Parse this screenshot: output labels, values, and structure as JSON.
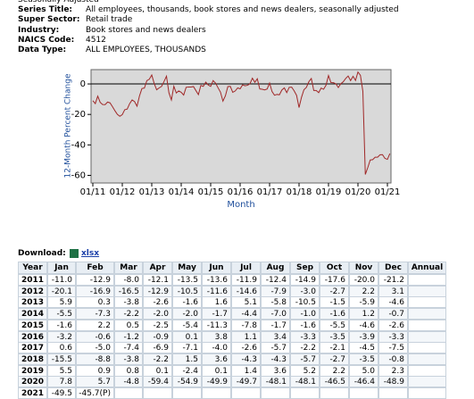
{
  "header": {
    "top_note": "Seasonally Adjusted"
  },
  "series_info": [
    {
      "label": "Series Title:",
      "value": "All employees, thousands, book stores and news dealers, seasonally adjusted"
    },
    {
      "label": "Super Sector:",
      "value": "Retail trade"
    },
    {
      "label": "Industry:",
      "value": "Book stores and news dealers"
    },
    {
      "label": "NAICS Code:",
      "value": "4512"
    },
    {
      "label": "Data Type:",
      "value": "ALL EMPLOYEES, THOUSANDS"
    }
  ],
  "chart_data": {
    "type": "line",
    "y_label": "12-Month Percent Change",
    "x_label": "Month",
    "ylim": [
      -65,
      9.4
    ],
    "yticks": [
      -60,
      -40,
      -20,
      0
    ],
    "xticks": [
      {
        "value": 0,
        "label": "01/11"
      },
      {
        "value": 12,
        "label": "01/12"
      },
      {
        "value": 24,
        "label": "01/13"
      },
      {
        "value": 36,
        "label": "01/14"
      },
      {
        "value": 48,
        "label": "01/15"
      },
      {
        "value": 60,
        "label": "01/16"
      },
      {
        "value": 72,
        "label": "01/17"
      },
      {
        "value": 84,
        "label": "01/18"
      },
      {
        "value": 96,
        "label": "01/19"
      },
      {
        "value": 108,
        "label": "01/20"
      },
      {
        "value": 120,
        "label": "01/21"
      }
    ],
    "series": [
      {
        "color": "#a02828",
        "values": [
          -11.0,
          -12.9,
          -8.0,
          -12.1,
          -13.5,
          -13.6,
          -11.9,
          -12.4,
          -14.9,
          -17.6,
          -20.0,
          -21.2,
          -20.1,
          -16.9,
          -16.5,
          -12.9,
          -10.5,
          -11.6,
          -14.6,
          -7.9,
          -3.0,
          -2.7,
          2.2,
          3.1,
          5.9,
          0.3,
          -3.8,
          -2.6,
          -1.6,
          1.6,
          5.1,
          -5.8,
          -10.5,
          -1.5,
          -5.9,
          -4.6,
          -5.5,
          -7.3,
          -2.2,
          -2.0,
          -2.0,
          -1.7,
          -4.4,
          -7.0,
          -1.0,
          -1.6,
          1.2,
          -0.7,
          -1.6,
          2.2,
          0.5,
          -2.5,
          -5.4,
          -11.3,
          -7.8,
          -1.7,
          -1.6,
          -5.5,
          -4.6,
          -2.6,
          -3.2,
          -0.6,
          -1.2,
          -0.9,
          0.1,
          3.8,
          1.1,
          3.4,
          -3.3,
          -3.5,
          -3.9,
          -3.3,
          0.6,
          -5.0,
          -7.4,
          -6.9,
          -7.1,
          -4.0,
          -2.6,
          -5.7,
          -2.2,
          -2.1,
          -4.5,
          -7.5,
          -15.5,
          -8.8,
          -3.8,
          -2.2,
          1.5,
          3.6,
          -4.3,
          -4.3,
          -5.7,
          -2.7,
          -3.5,
          -0.8,
          5.5,
          0.9,
          0.8,
          0.1,
          -2.4,
          0.1,
          1.4,
          3.6,
          5.2,
          2.2,
          5.0,
          2.3,
          7.8,
          5.7,
          -4.8,
          -59.4,
          -54.9,
          -49.9,
          -49.7,
          -48.1,
          -48.1,
          -46.5,
          -46.4,
          -48.9,
          -49.5,
          -45.7
        ]
      }
    ]
  },
  "download": {
    "label": "Download:",
    "link": "xlsx"
  },
  "table": {
    "columns": [
      "Year",
      "Jan",
      "Feb",
      "Mar",
      "Apr",
      "May",
      "Jun",
      "Jul",
      "Aug",
      "Sep",
      "Oct",
      "Nov",
      "Dec",
      "Annual"
    ],
    "rows": [
      [
        "2011",
        "-11.0",
        "-12.9",
        "-8.0",
        "-12.1",
        "-13.5",
        "-13.6",
        "-11.9",
        "-12.4",
        "-14.9",
        "-17.6",
        "-20.0",
        "-21.2"
      ],
      [
        "2012",
        "-20.1",
        "-16.9",
        "-16.5",
        "-12.9",
        "-10.5",
        "-11.6",
        "-14.6",
        "-7.9",
        "-3.0",
        "-2.7",
        "2.2",
        "3.1"
      ],
      [
        "2013",
        "5.9",
        "0.3",
        "-3.8",
        "-2.6",
        "-1.6",
        "1.6",
        "5.1",
        "-5.8",
        "-10.5",
        "-1.5",
        "-5.9",
        "-4.6"
      ],
      [
        "2014",
        "-5.5",
        "-7.3",
        "-2.2",
        "-2.0",
        "-2.0",
        "-1.7",
        "-4.4",
        "-7.0",
        "-1.0",
        "-1.6",
        "1.2",
        "-0.7"
      ],
      [
        "2015",
        "-1.6",
        "2.2",
        "0.5",
        "-2.5",
        "-5.4",
        "-11.3",
        "-7.8",
        "-1.7",
        "-1.6",
        "-5.5",
        "-4.6",
        "-2.6"
      ],
      [
        "2016",
        "-3.2",
        "-0.6",
        "-1.2",
        "-0.9",
        "0.1",
        "3.8",
        "1.1",
        "3.4",
        "-3.3",
        "-3.5",
        "-3.9",
        "-3.3"
      ],
      [
        "2017",
        "0.6",
        "-5.0",
        "-7.4",
        "-6.9",
        "-7.1",
        "-4.0",
        "-2.6",
        "-5.7",
        "-2.2",
        "-2.1",
        "-4.5",
        "-7.5"
      ],
      [
        "2018",
        "-15.5",
        "-8.8",
        "-3.8",
        "-2.2",
        "1.5",
        "3.6",
        "-4.3",
        "-4.3",
        "-5.7",
        "-2.7",
        "-3.5",
        "-0.8"
      ],
      [
        "2019",
        "5.5",
        "0.9",
        "0.8",
        "0.1",
        "-2.4",
        "0.1",
        "1.4",
        "3.6",
        "5.2",
        "2.2",
        "5.0",
        "2.3"
      ],
      [
        "2020",
        "7.8",
        "5.7",
        "-4.8",
        "-59.4",
        "-54.9",
        "-49.9",
        "-49.7",
        "-48.1",
        "-48.1",
        "-46.5",
        "-46.4",
        "-48.9"
      ],
      [
        "2021",
        "-49.5",
        "-45.7(P)"
      ]
    ]
  }
}
